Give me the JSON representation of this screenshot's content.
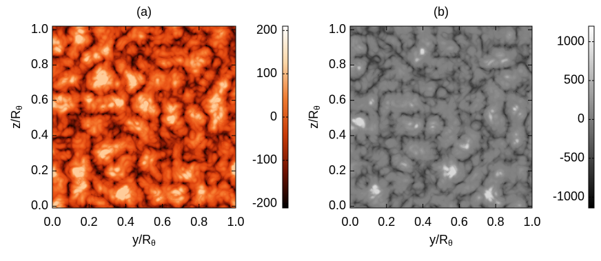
{
  "chart_data": [
    {
      "type": "heatmap",
      "title": "(a)",
      "xlabel": "y/R",
      "xlabel_sub": "θ",
      "ylabel": "z/R",
      "ylabel_sub": "θ",
      "xlim": [
        0,
        1
      ],
      "ylim": [
        -0.01,
        1.02
      ],
      "xticks": [
        {
          "value": 0,
          "label": "0.0"
        },
        {
          "value": 0.2,
          "label": "0.2"
        },
        {
          "value": 0.4,
          "label": "0.4"
        },
        {
          "value": 0.6,
          "label": "0.6"
        },
        {
          "value": 0.8,
          "label": "0.8"
        },
        {
          "value": 1,
          "label": "1.0"
        }
      ],
      "yticks": [
        {
          "value": 0,
          "label": "0.0"
        },
        {
          "value": 0.2,
          "label": "0.2"
        },
        {
          "value": 0.4,
          "label": "0.4"
        },
        {
          "value": 0.6,
          "label": "0.6"
        },
        {
          "value": 0.8,
          "label": "0.8"
        },
        {
          "value": 1,
          "label": "1.0"
        }
      ],
      "zlim": [
        -210,
        210
      ],
      "zticks": [
        -200,
        -100,
        0,
        100,
        200
      ],
      "colormap": [
        "#000000",
        "#6e1200",
        "#c73a08",
        "#ee7a30",
        "#fbd7a8",
        "#ffffff"
      ]
    },
    {
      "type": "heatmap",
      "title": "(b)",
      "xlabel": "y/R",
      "xlabel_sub": "θ",
      "ylabel": "z/R",
      "ylabel_sub": "θ",
      "xlim": [
        0,
        1
      ],
      "ylim": [
        -0.01,
        1.02
      ],
      "xticks": [
        {
          "value": 0,
          "label": "0.0"
        },
        {
          "value": 0.2,
          "label": "0.2"
        },
        {
          "value": 0.4,
          "label": "0.4"
        },
        {
          "value": 0.6,
          "label": "0.6"
        },
        {
          "value": 0.8,
          "label": "0.8"
        },
        {
          "value": 1,
          "label": "1.0"
        }
      ],
      "yticks": [
        {
          "value": 0,
          "label": "0.0"
        },
        {
          "value": 0.2,
          "label": "0.2"
        },
        {
          "value": 0.4,
          "label": "0.4"
        },
        {
          "value": 0.6,
          "label": "0.6"
        },
        {
          "value": 0.8,
          "label": "0.8"
        },
        {
          "value": 1,
          "label": "1.0"
        }
      ],
      "zlim": [
        -1140,
        1200
      ],
      "zticks": [
        -1000,
        -500,
        0,
        500,
        1000
      ],
      "colormap": [
        "#000000",
        "#ffffff"
      ]
    }
  ]
}
